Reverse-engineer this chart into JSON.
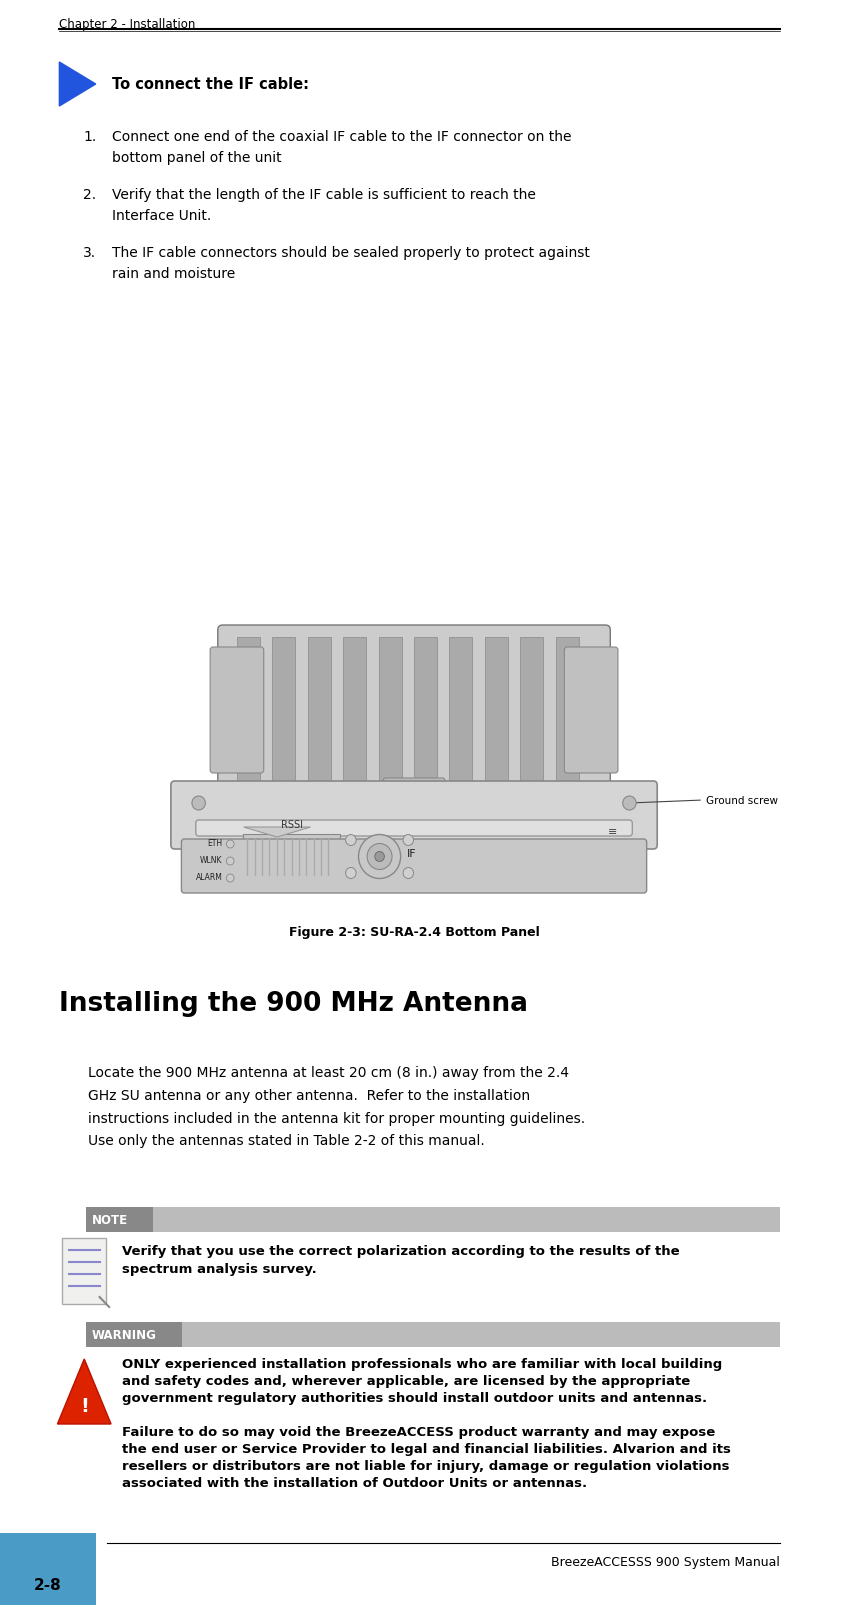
{
  "page_width": 8.65,
  "page_height": 16.06,
  "bg_color": "#ffffff",
  "header_text": "Chapter 2 - Installation",
  "footer_text": "BreezeACCESSS 900 System Manual",
  "footer_page": "2-8",
  "footer_blue_color": "#4a9cc7",
  "arrow_color": "#2255dd",
  "arrow_header": "To connect the IF cable:",
  "steps": [
    "Connect one end of the coaxial IF cable to the IF connector on the\nbottom panel of the unit",
    "Verify that the length of the IF cable is sufficient to reach the\nInterface Unit.",
    "The IF cable connectors should be sealed properly to protect against\nrain and moisture"
  ],
  "figure_caption": "Figure 2-3: SU-RA-2.4 Bottom Panel",
  "section_title": "Installing the 900 MHz Antenna",
  "section_body": "Locate the 900 MHz antenna at least 20 cm (8 in.) away from the 2.4\nGHz SU antenna or any other antenna.  Refer to the installation\ninstructions included in the antenna kit for proper mounting guidelines.\nUse only the antennas stated in Table 2-2 of this manual.",
  "note_label": "NOTE",
  "note_bg": "#888888",
  "note_text": "Verify that you use the correct polarization according to the results of the\nspectrum analysis survey.",
  "warning_label": "WARNING",
  "warning_bg": "#888888",
  "warning_text_bold": "ONLY experienced installation professionals who are familiar with local building\nand safety codes and, wherever applicable, are licensed by the appropriate\ngovernment regulatory authorities should install outdoor units and antennas.",
  "warning_text_normal": "Failure to do so may void the BreezeACCESS product warranty and may expose\nthe end user or Service Provider to legal and financial liabilities. Alvarion and its\nresellers or distributors are not liable for injury, damage or regulation violations\nassociated with the installation of Outdoor Units or antennas."
}
